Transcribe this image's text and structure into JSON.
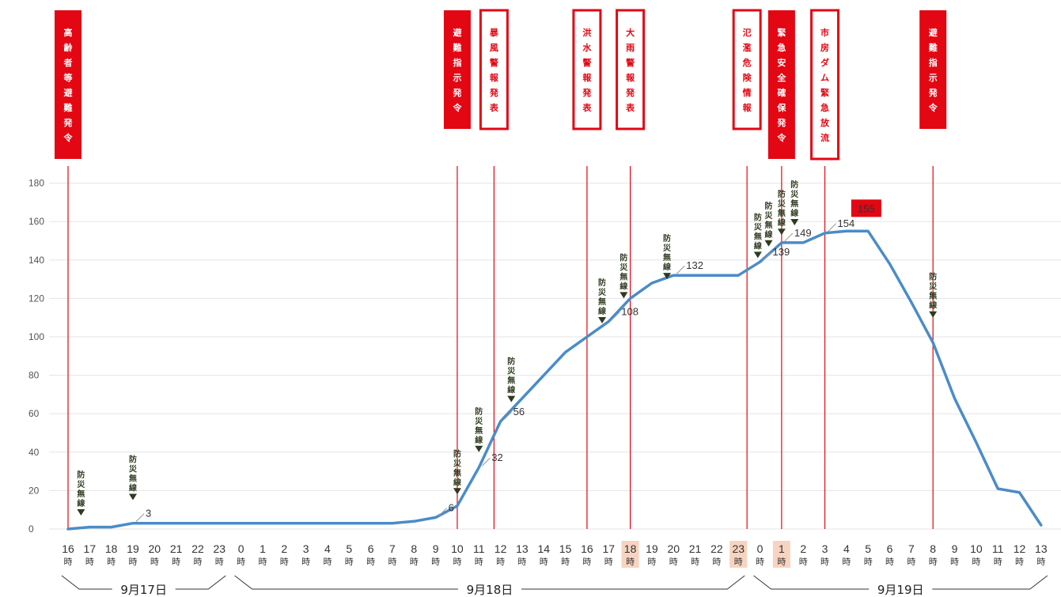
{
  "colors": {
    "line": "#4a8cc8",
    "event_red": "#e30613",
    "event_outline_text": "#e30613",
    "radio_marker": "#2d3b1f",
    "grid": "#e5e5e5",
    "highlight_hour": "#f8d3bf",
    "peak_badge": "#e30613"
  },
  "chart_data": {
    "type": "line",
    "x_hours": [
      "16",
      "17",
      "18",
      "19",
      "20",
      "21",
      "22",
      "23",
      "0",
      "1",
      "2",
      "3",
      "4",
      "5",
      "6",
      "7",
      "8",
      "9",
      "10",
      "11",
      "12",
      "13",
      "14",
      "15",
      "16",
      "17",
      "18",
      "19",
      "20",
      "21",
      "22",
      "23",
      "0",
      "1",
      "2",
      "3",
      "4",
      "5",
      "6",
      "7",
      "8",
      "9",
      "10",
      "11",
      "12",
      "13"
    ],
    "hour_suffix": "時",
    "highlighted_hours": [
      26,
      31,
      33
    ],
    "date_groups": [
      {
        "label": "9月17日",
        "start": 0,
        "end": 7
      },
      {
        "label": "9月18日",
        "start": 8,
        "end": 31
      },
      {
        "label": "9月19日",
        "start": 32,
        "end": 45
      }
    ],
    "ylim": [
      0,
      180
    ],
    "yticks": [
      0,
      20,
      40,
      60,
      80,
      100,
      120,
      140,
      160,
      180
    ],
    "series": [
      {
        "values": [
          0,
          1,
          1,
          3,
          3,
          3,
          3,
          3,
          3,
          3,
          3,
          3,
          3,
          3,
          3,
          3,
          4,
          6,
          12,
          32,
          56,
          68,
          80,
          92,
          100,
          108,
          120,
          128,
          132,
          132,
          132,
          132,
          139,
          149,
          149,
          154,
          155,
          155,
          138,
          118,
          97,
          68,
          45,
          21,
          19,
          2
        ]
      }
    ],
    "value_labels": [
      {
        "index": 3,
        "text": "3"
      },
      {
        "index": 17,
        "text": "6"
      },
      {
        "index": 19,
        "text": "32"
      },
      {
        "index": 20,
        "text": "56"
      },
      {
        "index": 25,
        "text": "108"
      },
      {
        "index": 28,
        "text": "132"
      },
      {
        "index": 32,
        "text": "139"
      },
      {
        "index": 33,
        "text": "149"
      },
      {
        "index": 35,
        "text": "154"
      },
      {
        "index": 36,
        "text": "155",
        "badge": true
      }
    ],
    "events": [
      {
        "text": "高齢者等避難発令",
        "x": 0,
        "style": "filled"
      },
      {
        "text": "避難指示発令",
        "x": 18,
        "style": "filled"
      },
      {
        "text": "暴風警報発表",
        "x": 19.7,
        "style": "outlined"
      },
      {
        "text": "洪水警報発表",
        "x": 24,
        "style": "outlined"
      },
      {
        "text": "大雨警報発表",
        "x": 26,
        "style": "outlined"
      },
      {
        "text": "氾濫危険情報",
        "x": 31.4,
        "style": "outlined"
      },
      {
        "text": "緊急安全確保発令",
        "x": 33,
        "style": "filled"
      },
      {
        "text": "市房ダム緊急放流",
        "x": 35,
        "style": "outlined"
      },
      {
        "text": "避難指示発令",
        "x": 40,
        "style": "filled"
      }
    ],
    "radio_markers": {
      "text": "防災無線",
      "positions": [
        {
          "x": 0.6,
          "y": 7
        },
        {
          "x": 3,
          "y": 15
        },
        {
          "x": 18,
          "y": 18
        },
        {
          "x": 19,
          "y": 40
        },
        {
          "x": 20.5,
          "y": 66
        },
        {
          "x": 24.7,
          "y": 107
        },
        {
          "x": 25.7,
          "y": 120
        },
        {
          "x": 27.7,
          "y": 130
        },
        {
          "x": 31.9,
          "y": 141
        },
        {
          "x": 32.4,
          "y": 147
        },
        {
          "x": 33,
          "y": 153
        },
        {
          "x": 33.6,
          "y": 158
        },
        {
          "x": 40,
          "y": 110
        }
      ]
    }
  }
}
